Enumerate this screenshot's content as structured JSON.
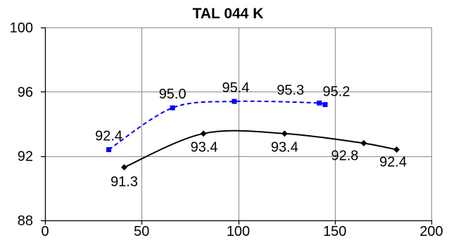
{
  "chart_data": {
    "type": "line",
    "title": "TAL 044 K",
    "xlim": [
      0,
      200
    ],
    "ylim": [
      88,
      100
    ],
    "x_ticks": [
      0,
      50,
      100,
      150,
      200
    ],
    "y_ticks": [
      88,
      92,
      96,
      100
    ],
    "grid": true,
    "legend": false,
    "smooth": true,
    "series": [
      {
        "color": "#0000FF",
        "dashed": true,
        "marker": "square",
        "x": [
          33,
          66,
          98,
          142,
          145
        ],
        "y": [
          92.4,
          95.0,
          95.4,
          95.3,
          95.2
        ],
        "labels": [
          "92.4",
          "95.0",
          "95.4",
          "95.3",
          "95.2"
        ]
      },
      {
        "color": "#000000",
        "dashed": false,
        "marker": "diamond",
        "x": [
          41,
          82,
          124,
          165,
          182
        ],
        "y": [
          91.3,
          93.4,
          93.4,
          92.8,
          92.4
        ],
        "labels": [
          "91.3",
          "93.4",
          "93.4",
          "92.8",
          "92.4"
        ]
      }
    ]
  }
}
